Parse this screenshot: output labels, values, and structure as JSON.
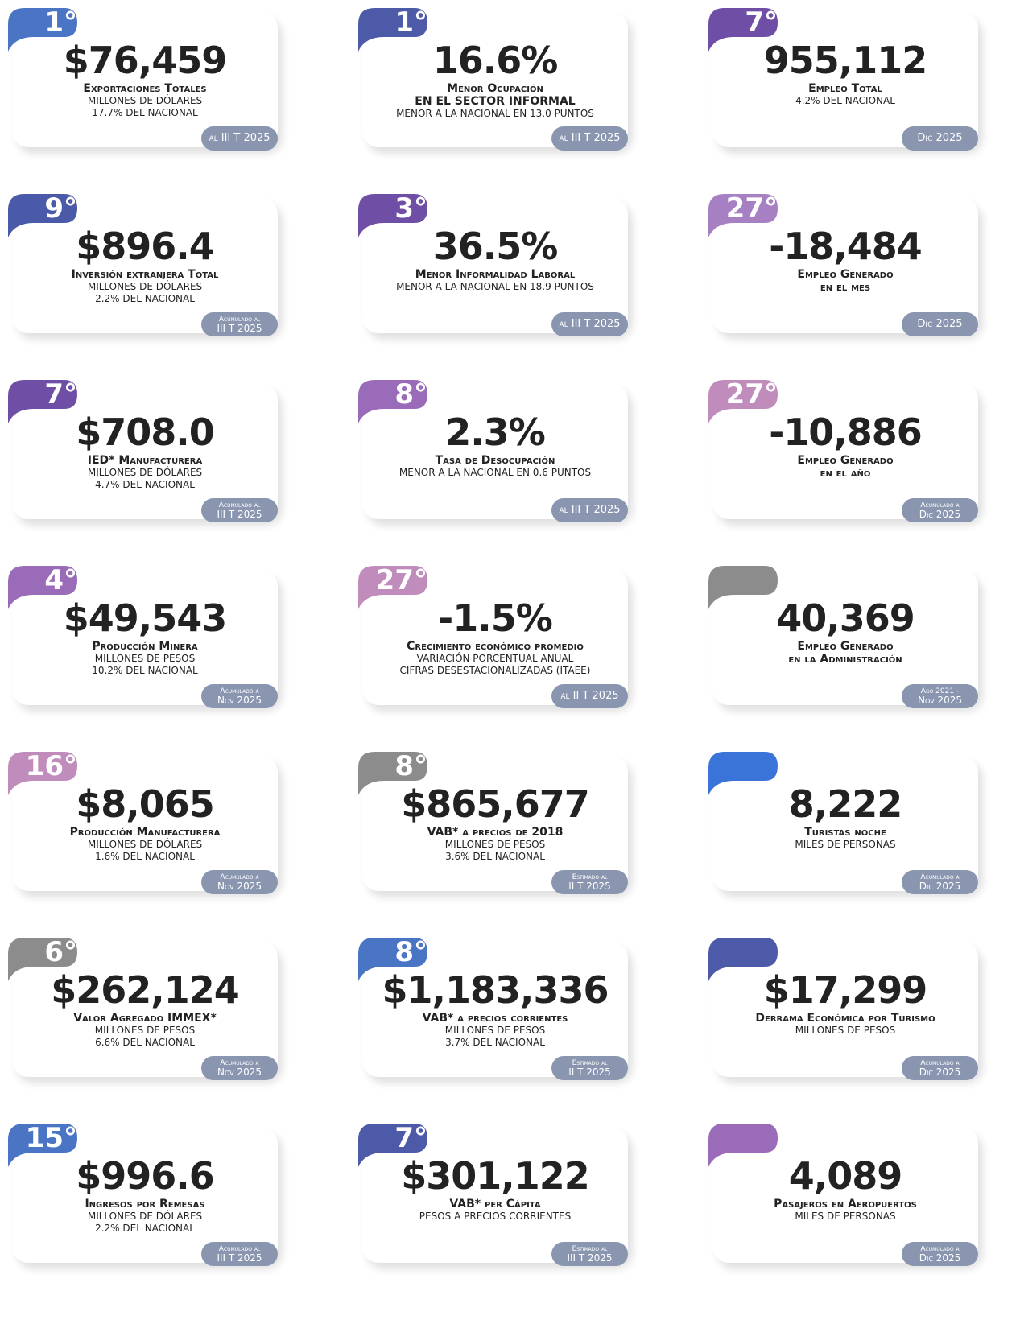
{
  "cards": [
    {
      "rank": "1°",
      "color": "#4a74c4",
      "value": "$76,459",
      "title": [
        "Exportaciones Totales"
      ],
      "details": [
        "MILLONES DE DÓLARES",
        "17.7% DEL NACIONAL"
      ],
      "badge": [
        "al III T 2025"
      ]
    },
    {
      "rank": "1°",
      "color": "#4d5aa8",
      "value": "16.6%",
      "title": [
        "Menor Ocupación",
        "EN EL SECTOR INFORMAL"
      ],
      "details": [
        "MENOR A LA NACIONAL EN 13.0 PUNTOS"
      ],
      "badge": [
        "al III T 2025"
      ]
    },
    {
      "rank": "7°",
      "color": "#6f4fa6",
      "value": "955,112",
      "title": [
        "Empleo Total"
      ],
      "details": [
        "4.2% DEL NACIONAL"
      ],
      "badge": [
        "Dic 2025"
      ]
    },
    {
      "rank": "9°",
      "color": "#4b5aa8",
      "value": "$896.4",
      "title": [
        "Inversión extranjera Total"
      ],
      "details": [
        "MILLONES DE DÓLARES",
        "2.2% DEL NACIONAL"
      ],
      "badge": [
        "Acumulado al",
        "III T 2025"
      ]
    },
    {
      "rank": "3°",
      "color": "#6f4fa6",
      "value": "36.5%",
      "title": [
        "Menor Informalidad Laboral"
      ],
      "details": [
        "MENOR A LA NACIONAL EN 18.9 PUNTOS"
      ],
      "badge": [
        "al III T 2025"
      ]
    },
    {
      "rank": "27°",
      "color": "#a780c4",
      "value": "-18,484",
      "title": [
        "Empleo Generado",
        "en el mes"
      ],
      "details": [],
      "badge": [
        "Dic 2025"
      ]
    },
    {
      "rank": "7°",
      "color": "#6f4fa6",
      "value": "$708.0",
      "title": [
        "IED* Manufacturera"
      ],
      "details": [
        "MILLONES DE DÓLARES",
        "4.7% DEL NACIONAL"
      ],
      "badge": [
        "Acumulado al",
        "III T 2025"
      ]
    },
    {
      "rank": "8°",
      "color": "#9a6bb8",
      "value": "2.3%",
      "title": [
        "Tasa de Desocupación"
      ],
      "details": [
        "MENOR A LA NACIONAL EN 0.6 PUNTOS"
      ],
      "badge": [
        "al III T 2025"
      ]
    },
    {
      "rank": "27°",
      "color": "#c08cbc",
      "value": "-10,886",
      "title": [
        "Empleo Generado",
        "en el año"
      ],
      "details": [],
      "badge": [
        "Acumulado a",
        "Dic 2025"
      ]
    },
    {
      "rank": "4°",
      "color": "#9a6bb8",
      "value": "$49,543",
      "title": [
        "Producción Minera"
      ],
      "details": [
        "MILLONES DE PESOS",
        "10.2% DEL NACIONAL"
      ],
      "badge": [
        "Acumulado a",
        "Nov 2025"
      ]
    },
    {
      "rank": "27°",
      "color": "#c08cbc",
      "value": "-1.5%",
      "title": [
        "Crecimiento económico promedio"
      ],
      "details": [
        "VARIACIÓN PORCENTUAL ANUAL",
        "CIFRAS DESESTACIONALIZADAS (ITAEE)"
      ],
      "badge": [
        "al II T 2025"
      ]
    },
    {
      "rank": null,
      "color": "#8c8c8c",
      "value": "40,369",
      "title": [
        "Empleo Generado",
        "en la Administración"
      ],
      "details": [],
      "badge": [
        "Ago 2021 -",
        "Nov 2025"
      ]
    },
    {
      "rank": "16°",
      "color": "#c08cbc",
      "value": "$8,065",
      "title": [
        "Producción Manufacturera"
      ],
      "details": [
        "MILLONES DE DÓLARES",
        "1.6% DEL NACIONAL"
      ],
      "badge": [
        "Acumulado a",
        "Nov 2025"
      ]
    },
    {
      "rank": "8°",
      "color": "#8c8c8c",
      "value": "$865,677",
      "title": [
        "VAB* a precios de 2018"
      ],
      "details": [
        "MILLONES DE PESOS",
        "3.6% DEL NACIONAL"
      ],
      "badge": [
        "Estimado al",
        "II T 2025"
      ]
    },
    {
      "rank": null,
      "color": "#3a74d8",
      "value": "8,222",
      "title": [
        "Turistas noche"
      ],
      "details": [
        "MILES DE PERSONAS"
      ],
      "badge": [
        "Acumulado a",
        "Dic 2025"
      ]
    },
    {
      "rank": "6°",
      "color": "#8c8c8c",
      "value": "$262,124",
      "title": [
        "Valor Agregado IMMEX*"
      ],
      "details": [
        "MILLONES DE PESOS",
        "6.6% DEL NACIONAL"
      ],
      "badge": [
        "Acumulado a",
        "Nov 2025"
      ]
    },
    {
      "rank": "8°",
      "color": "#4a74c4",
      "value": "$1,183,336",
      "title": [
        "VAB* a precios corrientes"
      ],
      "details": [
        "MILLONES DE PESOS",
        "3.7% DEL NACIONAL"
      ],
      "badge": [
        "Estimado al",
        "II T 2025"
      ]
    },
    {
      "rank": null,
      "color": "#4d5aa8",
      "value": "$17,299",
      "title": [
        "Derrama Económica por Turismo"
      ],
      "details": [
        "MILLONES DE PESOS"
      ],
      "badge": [
        "Acumulado a",
        "Dic 2025"
      ]
    },
    {
      "rank": "15°",
      "color": "#4a74c4",
      "value": "$996.6",
      "title": [
        "Ingresos por Remesas"
      ],
      "details": [
        "MILLONES DE DÓLARES",
        "2.2% DEL NACIONAL"
      ],
      "badge": [
        "Acumulado al",
        "III T 2025"
      ]
    },
    {
      "rank": "7°",
      "color": "#4d5aa8",
      "value": "$301,122",
      "title": [
        "VAB* per Cápita"
      ],
      "details": [
        "PESOS A PRECIOS CORRIENTES"
      ],
      "badge": [
        "Estimado al",
        "III T 2025"
      ]
    },
    {
      "rank": null,
      "color": "#9a6bb8",
      "value": "4,089",
      "title": [
        "Pasajeros en Aeropuertos"
      ],
      "details": [
        "MILES DE PERSONAS"
      ],
      "badge": [
        "Acumulado a",
        "Dic 2025"
      ]
    }
  ]
}
